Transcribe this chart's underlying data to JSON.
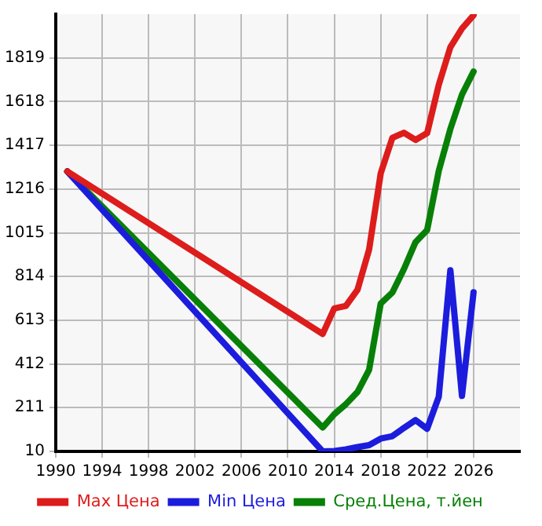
{
  "chart_data": {
    "type": "line",
    "x": [
      1991,
      2013,
      2014,
      2015,
      2016,
      2017,
      2018,
      2019,
      2020,
      2021,
      2022,
      2023,
      2024,
      2025,
      2026
    ],
    "series": [
      {
        "name": "Max Цена",
        "color": "#dd1c1c",
        "values": [
          1297,
          550,
          667,
          679,
          753,
          938,
          1288,
          1451,
          1475,
          1442,
          1473,
          1695,
          1868,
          1954,
          2015
        ]
      },
      {
        "name": "Min Цена",
        "color": "#1c1cdd",
        "values": [
          1297,
          10,
          12,
          19,
          30,
          39,
          69,
          80,
          118,
          154,
          114,
          261,
          843,
          265,
          742
        ]
      },
      {
        "name": "Сред.Цена, т.йен",
        "color": "#088008",
        "values": [
          1297,
          120,
          181,
          227,
          283,
          385,
          690,
          740,
          848,
          972,
          1028,
          1299,
          1492,
          1650,
          1756
        ]
      }
    ],
    "xlim": [
      1990,
      2030
    ],
    "xticks": [
      1990,
      1994,
      1998,
      2002,
      2006,
      2010,
      2014,
      2018,
      2022,
      2026
    ],
    "ylim": [
      10,
      2020
    ],
    "yticks": [
      10,
      211,
      412,
      613,
      814,
      1015,
      1216,
      1417,
      1618,
      1819
    ],
    "grid": true,
    "legend": "bottom",
    "marker": "none",
    "line_style": "solid"
  }
}
